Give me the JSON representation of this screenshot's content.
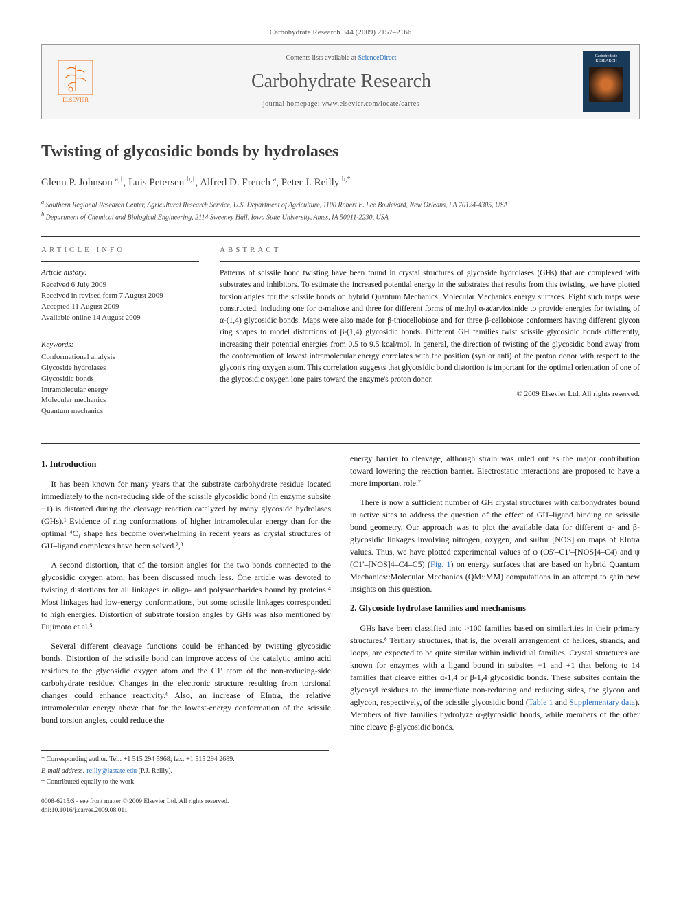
{
  "citation": "Carbohydrate Research 344 (2009) 2157–2166",
  "header": {
    "contents_prefix": "Contents lists available at ",
    "contents_link": "ScienceDirect",
    "journal_name": "Carbohydrate Research",
    "homepage": "journal homepage: www.elsevier.com/locate/carres",
    "publisher_name": "ELSEVIER",
    "cover_label": "Carbohydrate RESEARCH"
  },
  "title": "Twisting of glycosidic bonds by hydrolases",
  "authors_html": "Glenn P. Johnson <sup>a,†</sup>, Luis Petersen <sup>b,†</sup>, Alfred D. French <sup>a</sup>, Peter J. Reilly <sup>b,*</sup>",
  "affiliations": [
    "a Southern Regional Research Center, Agricultural Research Service, U.S. Department of Agriculture, 1100 Robert E. Lee Boulevard, New Orleans, LA 70124-4305, USA",
    "b Department of Chemical and Biological Engineering, 2114 Sweeney Hall, Iowa State University, Ames, IA 50011-2230, USA"
  ],
  "article_info": {
    "heading": "ARTICLE INFO",
    "history_label": "Article history:",
    "history": [
      "Received 6 July 2009",
      "Received in revised form 7 August 2009",
      "Accepted 11 August 2009",
      "Available online 14 August 2009"
    ],
    "keywords_label": "Keywords:",
    "keywords": [
      "Conformational analysis",
      "Glycoside hydrolases",
      "Glycosidic bonds",
      "Intramolecular energy",
      "Molecular mechanics",
      "Quantum mechanics"
    ]
  },
  "abstract": {
    "heading": "ABSTRACT",
    "text": "Patterns of scissile bond twisting have been found in crystal structures of glycoside hydrolases (GHs) that are complexed with substrates and inhibitors. To estimate the increased potential energy in the substrates that results from this twisting, we have plotted torsion angles for the scissile bonds on hybrid Quantum Mechanics::Molecular Mechanics energy surfaces. Eight such maps were constructed, including one for α-maltose and three for different forms of methyl α-acarviosinide to provide energies for twisting of α-(1,4) glycosidic bonds. Maps were also made for β-thiocellobiose and for three β-cellobiose conformers having different glycon ring shapes to model distortions of β-(1,4) glycosidic bonds. Different GH families twist scissile glycosidic bonds differently, increasing their potential energies from 0.5 to 9.5 kcal/mol. In general, the direction of twisting of the glycosidic bond away from the conformation of lowest intramolecular energy correlates with the position (syn or anti) of the proton donor with respect to the glycon's ring oxygen atom. This correlation suggests that glycosidic bond distortion is important for the optimal orientation of one of the glycosidic oxygen lone pairs toward the enzyme's proton donor.",
    "copyright": "© 2009 Elsevier Ltd. All rights reserved."
  },
  "sections": {
    "intro_heading": "1. Introduction",
    "intro_p1": "It has been known for many years that the substrate carbohydrate residue located immediately to the non-reducing side of the scissile glycosidic bond (in enzyme subsite −1) is distorted during the cleavage reaction catalyzed by many glycoside hydrolases (GHs).¹ Evidence of ring conformations of higher intramolecular energy than for the optimal ⁴C₁ shape has become overwhelming in recent years as crystal structures of GH–ligand complexes have been solved.²,³",
    "intro_p2": "A second distortion, that of the torsion angles for the two bonds connected to the glycosidic oxygen atom, has been discussed much less. One article was devoted to twisting distortions for all linkages in oligo- and polysaccharides bound by proteins.⁴ Most linkages had low-energy conformations, but some scissile linkages corresponded to high energies. Distortion of substrate torsion angles by GHs was also mentioned by Fujimoto et al.⁵",
    "intro_p3": "Several different cleavage functions could be enhanced by twisting glycosidic bonds. Distortion of the scissile bond can improve access of the catalytic amino acid residues to the glycosidic oxygen atom and the C1′ atom of the non-reducing-side carbohydrate residue. Changes in the electronic structure resulting from torsional changes could enhance reactivity.⁶ Also, an increase of EIntra, the relative intramolecular energy above that for the lowest-energy conformation of the scissile bond torsion angles, could reduce the",
    "intro_p4": "energy barrier to cleavage, although strain was ruled out as the major contribution toward lowering the reaction barrier. Electrostatic interactions are proposed to have a more important role.⁷",
    "intro_p5_pre": "There is now a sufficient number of GH crystal structures with carbohydrates bound in active sites to address the question of the effect of GH–ligand binding on scissile bond geometry. Our approach was to plot the available data for different α- and β-glycosidic linkages involving nitrogen, oxygen, and sulfur [NOS] on maps of EIntra values. Thus, we have plotted experimental values of φ (O5′–C1′–[NOS]4–C4) and ψ (C1′–[NOS]4–C4–C5) (",
    "intro_p5_link": "Fig. 1",
    "intro_p5_post": ") on energy surfaces that are based on hybrid Quantum Mechanics::Molecular Mechanics (QM::MM) computations in an attempt to gain new insights on this question.",
    "gh_heading": "2. Glycoside hydrolase families and mechanisms",
    "gh_p1_pre": "GHs have been classified into >100 families based on similarities in their primary structures.⁸ Tertiary structures, that is, the overall arrangement of helices, strands, and loops, are expected to be quite similar within individual families. Crystal structures are known for enzymes with a ligand bound in subsites −1 and +1 that belong to 14 families that cleave either α-1,4 or β-1,4 glycosidic bonds. These subsites contain the glycosyl residues to the immediate non-reducing and reducing sides, the glycon and aglycon, respectively, of the scissile glycosidic bond (",
    "gh_p1_link1": "Table 1",
    "gh_p1_mid": " and ",
    "gh_p1_link2": "Supplementary data",
    "gh_p1_post": "). Members of five families hydrolyze α-glycosidic bonds, while members of the other nine cleave β-glycosidic bonds."
  },
  "footnotes": {
    "corr": "* Corresponding author. Tel.: +1 515 294 5968; fax: +1 515 294 2689.",
    "email_label": "E-mail address:",
    "email": "reilly@iastate.edu",
    "email_who": "(P.J. Reilly).",
    "contrib": "† Contributed equally to the work."
  },
  "footer": {
    "left1": "0008-6215/$ - see front matter © 2009 Elsevier Ltd. All rights reserved.",
    "left2": "doi:10.1016/j.carres.2009.08.011"
  },
  "colors": {
    "link": "#2a6fbb",
    "elsevier_orange": "#e9711c",
    "text": "#1a1a1a",
    "muted": "#555555",
    "heading_grey": "#666666",
    "rule": "#333333",
    "header_bg": "#f5f5f5"
  }
}
